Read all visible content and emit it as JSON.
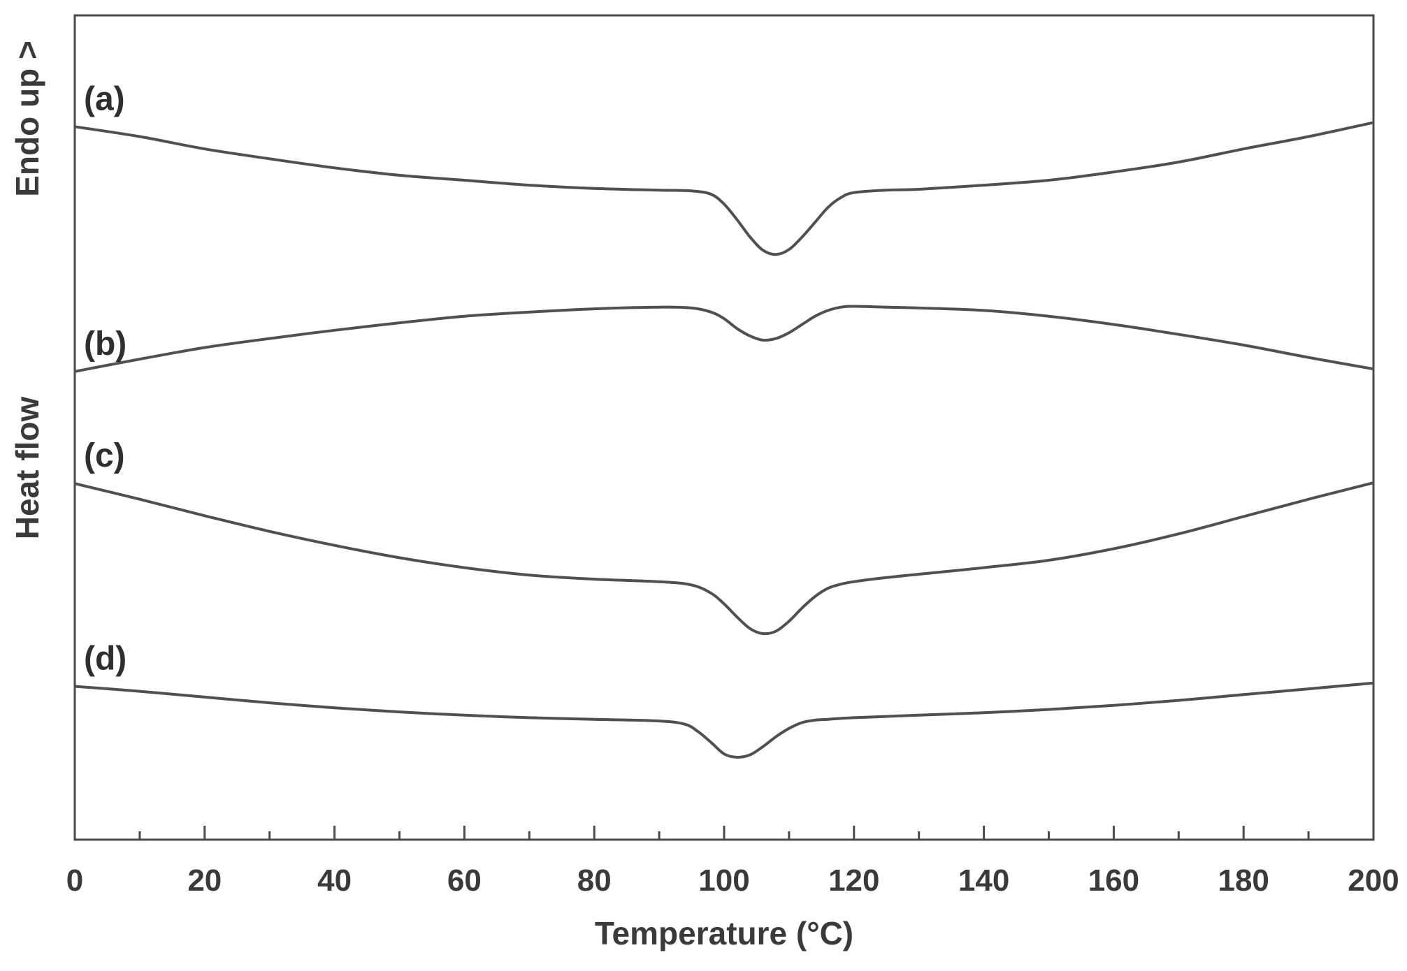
{
  "chart_data": {
    "type": "line",
    "xlabel": "Temperature (°C)",
    "ylabel_top": "Endo up >",
    "ylabel": "Heat flow",
    "xlim": [
      0,
      200
    ],
    "ylim": [
      0,
      1
    ],
    "xticks": [
      "0",
      "20",
      "40",
      "60",
      "80",
      "100",
      "120",
      "140",
      "160",
      "180",
      "200"
    ],
    "grid": false,
    "series": [
      {
        "name": "(a)",
        "x": [
          0,
          10,
          20,
          30,
          40,
          50,
          60,
          70,
          80,
          90,
          95,
          98,
          100,
          102,
          104,
          106,
          108,
          110,
          112,
          114,
          116,
          118,
          120,
          125,
          130,
          140,
          150,
          160,
          170,
          180,
          190,
          200
        ],
        "y": [
          0.865,
          0.853,
          0.838,
          0.826,
          0.815,
          0.806,
          0.8,
          0.794,
          0.79,
          0.788,
          0.787,
          0.783,
          0.771,
          0.752,
          0.731,
          0.715,
          0.71,
          0.716,
          0.731,
          0.749,
          0.767,
          0.779,
          0.785,
          0.788,
          0.789,
          0.794,
          0.8,
          0.81,
          0.822,
          0.838,
          0.853,
          0.87
        ]
      },
      {
        "name": "(b)",
        "x": [
          0,
          10,
          20,
          30,
          40,
          50,
          60,
          70,
          80,
          90,
          95,
          98,
          100,
          102,
          104,
          106,
          108,
          110,
          112,
          114,
          116,
          118,
          120,
          125,
          130,
          140,
          150,
          160,
          170,
          180,
          190,
          200
        ],
        "y": [
          0.568,
          0.583,
          0.597,
          0.608,
          0.618,
          0.627,
          0.635,
          0.64,
          0.644,
          0.646,
          0.645,
          0.64,
          0.632,
          0.62,
          0.611,
          0.606,
          0.608,
          0.615,
          0.625,
          0.635,
          0.642,
          0.646,
          0.647,
          0.646,
          0.645,
          0.642,
          0.635,
          0.625,
          0.613,
          0.6,
          0.585,
          0.571
        ]
      },
      {
        "name": "(c)",
        "x": [
          0,
          10,
          20,
          30,
          40,
          50,
          60,
          70,
          80,
          90,
          95,
          98,
          100,
          102,
          104,
          106,
          108,
          110,
          112,
          114,
          116,
          118,
          120,
          125,
          130,
          140,
          150,
          160,
          170,
          180,
          190,
          200
        ],
        "y": [
          0.432,
          0.413,
          0.393,
          0.374,
          0.357,
          0.342,
          0.33,
          0.321,
          0.316,
          0.313,
          0.309,
          0.299,
          0.286,
          0.27,
          0.256,
          0.25,
          0.253,
          0.265,
          0.281,
          0.295,
          0.305,
          0.31,
          0.313,
          0.318,
          0.322,
          0.33,
          0.339,
          0.353,
          0.371,
          0.392,
          0.413,
          0.433
        ]
      },
      {
        "name": "(d)",
        "x": [
          0,
          10,
          20,
          30,
          40,
          50,
          60,
          70,
          80,
          90,
          94,
          96,
          98,
          100,
          102,
          104,
          106,
          108,
          110,
          112,
          114,
          116,
          120,
          130,
          140,
          150,
          160,
          170,
          180,
          190,
          200
        ],
        "y": [
          0.186,
          0.18,
          0.173,
          0.166,
          0.16,
          0.155,
          0.151,
          0.148,
          0.146,
          0.144,
          0.14,
          0.131,
          0.118,
          0.104,
          0.1,
          0.103,
          0.113,
          0.125,
          0.135,
          0.142,
          0.145,
          0.146,
          0.148,
          0.151,
          0.154,
          0.158,
          0.163,
          0.169,
          0.176,
          0.183,
          0.19
        ]
      }
    ]
  }
}
